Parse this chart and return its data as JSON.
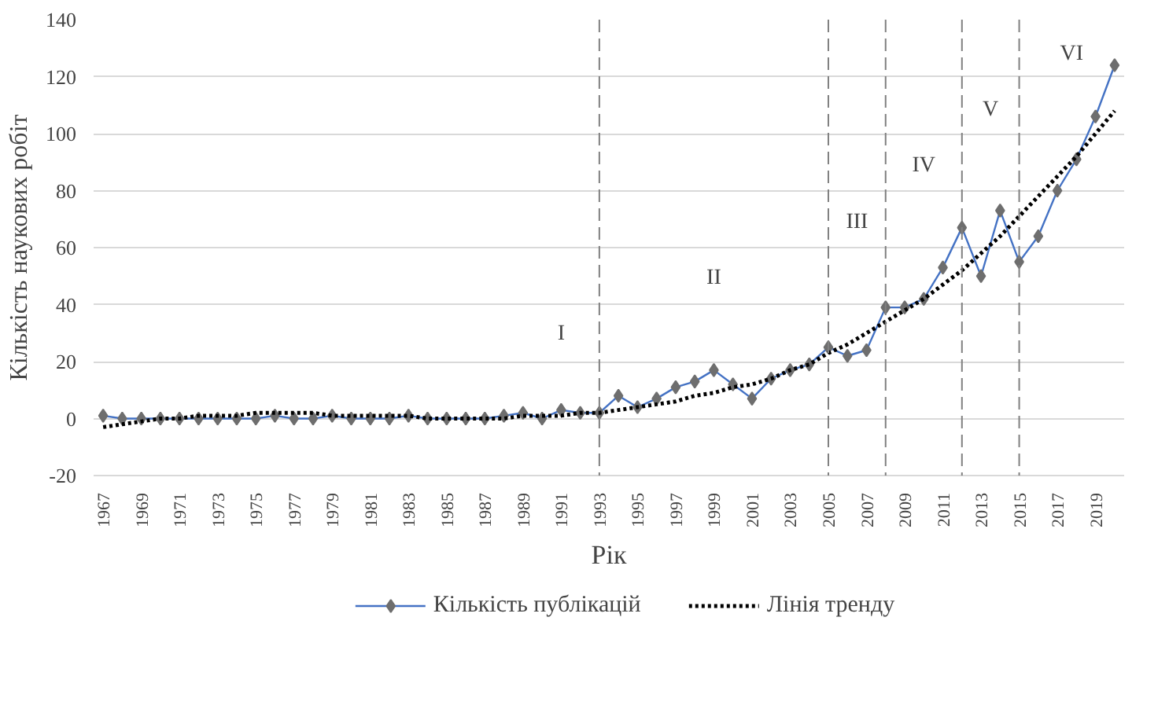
{
  "chart_data": {
    "type": "line",
    "xlabel": "Рік",
    "ylabel": "Кількість наукових робіт",
    "x": [
      1967,
      1968,
      1969,
      1970,
      1971,
      1972,
      1973,
      1974,
      1975,
      1976,
      1977,
      1978,
      1979,
      1980,
      1981,
      1982,
      1983,
      1984,
      1985,
      1986,
      1987,
      1988,
      1989,
      1990,
      1991,
      1992,
      1993,
      1994,
      1995,
      1996,
      1997,
      1998,
      1999,
      2000,
      2001,
      2002,
      2003,
      2004,
      2005,
      2006,
      2007,
      2008,
      2009,
      2010,
      2011,
      2012,
      2013,
      2014,
      2015,
      2016,
      2017,
      2018,
      2019,
      2020
    ],
    "series": [
      {
        "name": "Кількість публікацій",
        "color": "#4472c4",
        "marker": "diamond",
        "line_style": "solid",
        "values": [
          1,
          0,
          0,
          0,
          0,
          0,
          0,
          0,
          0,
          1,
          0,
          0,
          1,
          0,
          0,
          0,
          1,
          0,
          0,
          0,
          0,
          1,
          2,
          0,
          3,
          2,
          2,
          8,
          4,
          7,
          11,
          13,
          17,
          12,
          7,
          14,
          17,
          19,
          25,
          22,
          24,
          39,
          39,
          42,
          53,
          67,
          50,
          73,
          55,
          64,
          80,
          91,
          106,
          124
        ]
      },
      {
        "name": "Лінія тренду",
        "color": "#000000",
        "marker": "none",
        "line_style": "dotted",
        "values": [
          -3,
          -2,
          -1,
          0,
          0,
          1,
          1,
          1,
          2,
          2,
          2,
          2,
          1,
          1,
          1,
          1,
          1,
          0,
          0,
          0,
          0,
          0,
          1,
          1,
          1,
          2,
          2,
          3,
          4,
          5,
          6,
          8,
          9,
          11,
          12,
          14,
          17,
          19,
          23,
          26,
          30,
          34,
          38,
          42,
          47,
          52,
          58,
          64,
          71,
          78,
          85,
          92,
          100,
          108
        ]
      }
    ],
    "xlim": [
      1966.5,
      2020.5
    ],
    "xticks": [
      1967,
      1969,
      1971,
      1973,
      1975,
      1977,
      1979,
      1981,
      1983,
      1985,
      1987,
      1989,
      1991,
      1993,
      1995,
      1997,
      1999,
      2001,
      2003,
      2005,
      2007,
      2009,
      2011,
      2013,
      2015,
      2017,
      2019
    ],
    "ylim": [
      -20,
      140
    ],
    "yticks": [
      -20,
      0,
      20,
      40,
      60,
      80,
      100,
      120,
      140
    ],
    "grid": "y",
    "legend": "bottom",
    "ref_lines": [
      {
        "axis": "x",
        "value": 1993,
        "color": "#808080",
        "line_style": "dashed"
      },
      {
        "axis": "x",
        "value": 2005,
        "color": "#808080",
        "line_style": "dashed"
      },
      {
        "axis": "x",
        "value": 2008,
        "color": "#808080",
        "line_style": "dashed"
      },
      {
        "axis": "x",
        "value": 2012,
        "color": "#808080",
        "line_style": "dashed"
      },
      {
        "axis": "x",
        "value": 2015,
        "color": "#808080",
        "line_style": "dashed"
      }
    ],
    "annotations": [
      "I",
      "II",
      "III",
      "IV",
      "V",
      "VI"
    ]
  }
}
